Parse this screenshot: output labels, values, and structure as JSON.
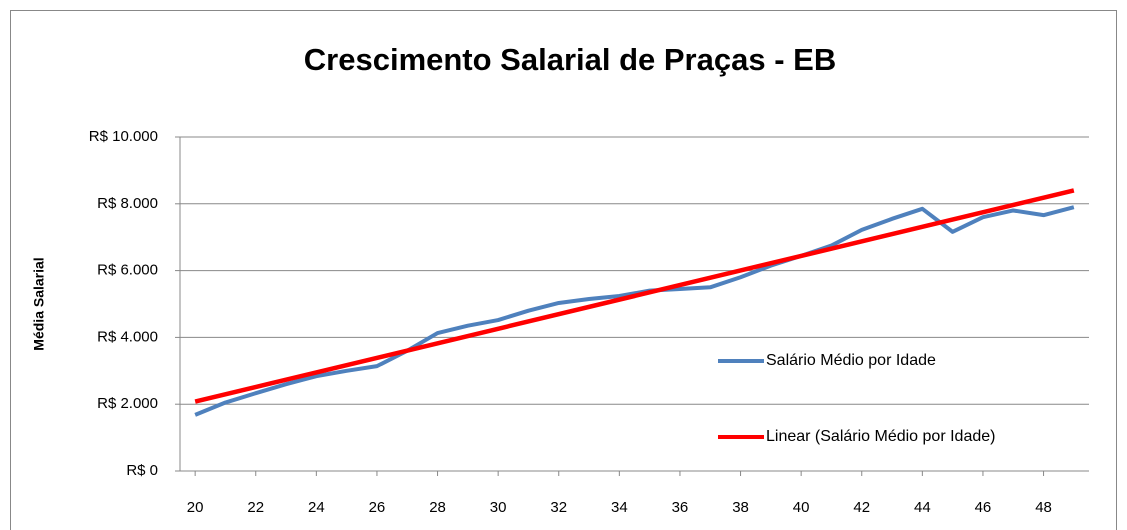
{
  "chart_data": {
    "type": "line",
    "title": "Crescimento Salarial de Praças - EB",
    "y_label": "Média Salarial",
    "x": [
      20,
      21,
      22,
      23,
      24,
      25,
      26,
      27,
      28,
      29,
      30,
      31,
      32,
      33,
      34,
      35,
      36,
      37,
      38,
      39,
      40,
      41,
      42,
      43,
      44,
      45,
      46,
      47,
      48,
      49
    ],
    "series": [
      {
        "name": "Salário Médio por Idade",
        "color": "#4f81bd",
        "values": [
          1680,
          2050,
          2330,
          2600,
          2840,
          3000,
          3140,
          3600,
          4130,
          4350,
          4520,
          4800,
          5030,
          5150,
          5240,
          5400,
          5450,
          5500,
          5800,
          6150,
          6440,
          6750,
          7220,
          7550,
          7850,
          7160,
          7600,
          7800,
          7660,
          7900
        ]
      },
      {
        "name": "Linear (Salário Médio por Idade)",
        "color": "#ff0000",
        "x": [
          20,
          49
        ],
        "values": [
          2080,
          8400
        ]
      }
    ],
    "xlim": [
      19.5,
      49.5
    ],
    "xticks": [
      20,
      22,
      24,
      26,
      28,
      30,
      32,
      34,
      36,
      38,
      40,
      42,
      44,
      46,
      48
    ],
    "ylim": [
      0,
      10000
    ],
    "yticks": [
      {
        "value": 0,
        "label": "R$ 0"
      },
      {
        "value": 2000,
        "label": "R$ 2.000"
      },
      {
        "value": 4000,
        "label": "R$ 4.000"
      },
      {
        "value": 6000,
        "label": "R$ 6.000"
      },
      {
        "value": 8000,
        "label": "R$ 8.000"
      },
      {
        "value": 10000,
        "label": "R$ 10.000"
      }
    ],
    "grid": true,
    "legend": "right"
  }
}
